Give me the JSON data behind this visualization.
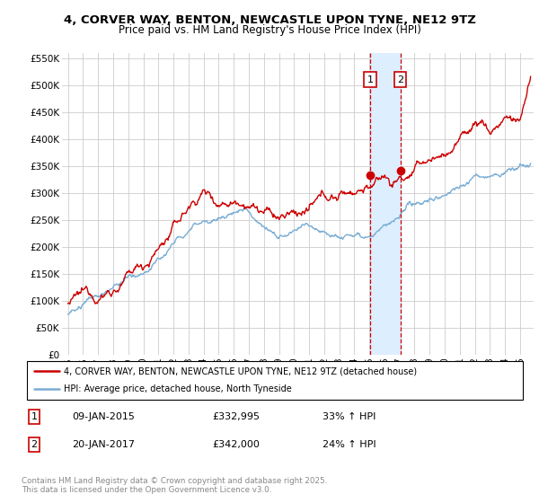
{
  "title_line1": "4, CORVER WAY, BENTON, NEWCASTLE UPON TYNE, NE12 9TZ",
  "title_line2": "Price paid vs. HM Land Registry's House Price Index (HPI)",
  "ylim": [
    0,
    560000
  ],
  "yticks": [
    0,
    50000,
    100000,
    150000,
    200000,
    250000,
    300000,
    350000,
    400000,
    450000,
    500000,
    550000
  ],
  "ytick_labels": [
    "£0",
    "£50K",
    "£100K",
    "£150K",
    "£200K",
    "£250K",
    "£300K",
    "£350K",
    "£400K",
    "£450K",
    "£500K",
    "£550K"
  ],
  "sale1_date": "09-JAN-2015",
  "sale1_price": 332995,
  "sale1_hpi": "33% ↑ HPI",
  "sale1_x": 2015.05,
  "sale1_y": 332995,
  "sale2_date": "20-JAN-2017",
  "sale2_price": 342000,
  "sale2_hpi": "24% ↑ HPI",
  "sale2_x": 2017.05,
  "sale2_y": 342000,
  "legend_label1": "4, CORVER WAY, BENTON, NEWCASTLE UPON TYNE, NE12 9TZ (detached house)",
  "legend_label2": "HPI: Average price, detached house, North Tyneside",
  "footer_text": "Contains HM Land Registry data © Crown copyright and database right 2025.\nThis data is licensed under the Open Government Licence v3.0.",
  "red_color": "#cc0000",
  "blue_color": "#7aadd4",
  "shading_color": "#ddeeff",
  "grid_color": "#cccccc",
  "background_color": "#ffffff",
  "xlim_left": 1994.6,
  "xlim_right": 2025.9
}
